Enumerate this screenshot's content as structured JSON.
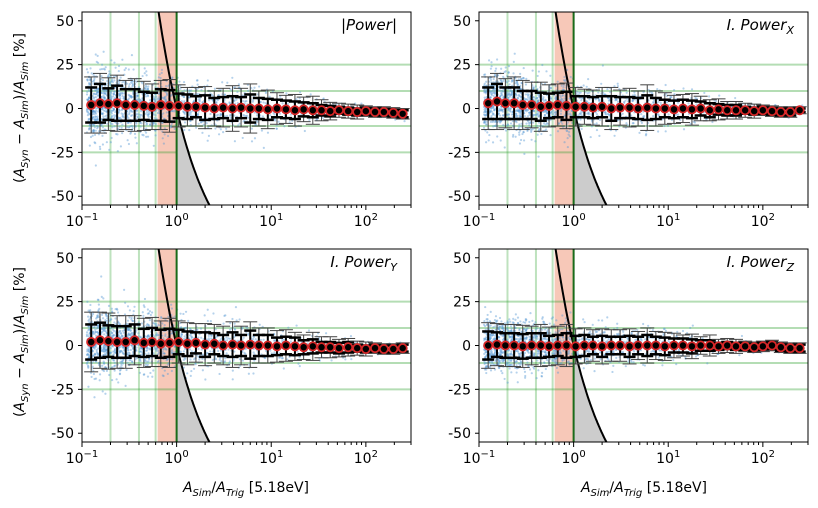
{
  "chart_data": [
    {
      "type": "scatter",
      "title": "|Power|",
      "ylabel": "(A_Syn − A_Sim)/A_Sim [%]",
      "xlabel": "",
      "xscale": "log",
      "xlim": [
        0.1,
        300
      ],
      "ylim": [
        -55,
        55
      ],
      "yticks": [
        -50,
        -25,
        0,
        25,
        50
      ],
      "xtick_labels": [
        "10^−1",
        "10^0",
        "10^1",
        "10^2"
      ],
      "series": [
        {
          "x": [
            0.125,
            0.155,
            0.19,
            0.235,
            0.29,
            0.36,
            0.45,
            0.55,
            0.68,
            0.84,
            1.05,
            1.3,
            1.6,
            2.0,
            2.5,
            3.1,
            3.9,
            4.8,
            6.0,
            7.4,
            9.2,
            11.5,
            14.3,
            17.8,
            22,
            27.5,
            34,
            42,
            52,
            65,
            81,
            100,
            125,
            155,
            195,
            245
          ],
          "y": [
            2,
            3,
            2.5,
            3,
            2,
            2,
            1.5,
            1,
            2,
            1.5,
            1.5,
            1,
            1,
            0.5,
            0,
            0.5,
            0,
            0.5,
            0,
            0,
            -0.5,
            0,
            -0.5,
            -1,
            -0.5,
            -1,
            -1,
            -1.5,
            -1,
            -1.5,
            -2,
            -1.5,
            -2,
            -2,
            -2.5,
            -3
          ],
          "yerr": [
            16,
            17,
            15,
            16,
            14,
            15,
            14,
            13,
            14,
            15,
            12,
            11,
            11,
            12,
            10,
            11,
            13,
            11,
            14,
            10,
            11,
            9,
            8,
            9,
            7,
            8,
            6,
            5,
            4,
            4,
            4,
            3,
            3,
            3,
            3,
            3
          ],
          "yerr_inner": [
            10,
            11,
            9,
            10,
            9,
            9,
            8,
            8,
            9,
            9,
            7,
            7,
            6,
            7,
            6,
            6,
            7,
            6,
            8,
            6,
            6,
            5,
            5,
            5,
            4,
            4,
            3,
            3,
            2,
            2,
            2,
            2,
            2,
            2,
            2,
            2
          ]
        }
      ]
    },
    {
      "type": "scatter",
      "title": "I.Power_X",
      "ylabel": "",
      "xlabel": "",
      "xscale": "log",
      "xlim": [
        0.1,
        300
      ],
      "ylim": [
        -55,
        55
      ],
      "yticks": [
        -50,
        -25,
        0,
        25,
        50
      ],
      "xtick_labels": [
        "10^−1",
        "10^0",
        "10^1",
        "10^2"
      ],
      "series": [
        {
          "x": [
            0.125,
            0.155,
            0.19,
            0.235,
            0.29,
            0.36,
            0.45,
            0.55,
            0.68,
            0.84,
            1.05,
            1.3,
            1.6,
            2.0,
            2.5,
            3.1,
            3.9,
            4.8,
            6.0,
            7.4,
            9.2,
            11.5,
            14.3,
            17.8,
            22,
            27.5,
            34,
            42,
            52,
            65,
            81,
            100,
            125,
            155,
            195,
            245
          ],
          "y": [
            3,
            4,
            3,
            3,
            2,
            2,
            1,
            1.5,
            2,
            1.5,
            1,
            1,
            0.5,
            1,
            0,
            0.5,
            0.5,
            0,
            0.5,
            0,
            0,
            -0.5,
            0,
            -0.5,
            0,
            -1,
            -0.5,
            -1,
            -1,
            -1,
            -1.5,
            -1,
            -1.5,
            -2,
            -2,
            -1
          ],
          "yerr": [
            15,
            16,
            14,
            15,
            14,
            13,
            14,
            12,
            12,
            13,
            11,
            10,
            10,
            11,
            12,
            10,
            11,
            10,
            13,
            10,
            9,
            8,
            8,
            9,
            7,
            6,
            6,
            5,
            5,
            4,
            4,
            3,
            3,
            3,
            3,
            2
          ],
          "yerr_inner": [
            9,
            10,
            9,
            9,
            8,
            8,
            8,
            7,
            7,
            8,
            6,
            6,
            6,
            6,
            7,
            6,
            6,
            6,
            7,
            6,
            5,
            5,
            5,
            5,
            4,
            4,
            3,
            3,
            3,
            2,
            2,
            2,
            2,
            2,
            2,
            1
          ]
        }
      ]
    },
    {
      "type": "scatter",
      "title": "I.Power_Y",
      "ylabel": "(A_Syn − A_Sim)/A_Sim [%]",
      "xlabel": "A_Sim/A_Trig [5.18eV]",
      "xscale": "log",
      "xlim": [
        0.1,
        300
      ],
      "ylim": [
        -55,
        55
      ],
      "yticks": [
        -50,
        -25,
        0,
        25,
        50
      ],
      "xtick_labels": [
        "10^−1",
        "10^0",
        "10^1",
        "10^2"
      ],
      "series": [
        {
          "x": [
            0.125,
            0.155,
            0.19,
            0.235,
            0.29,
            0.36,
            0.45,
            0.55,
            0.68,
            0.84,
            1.05,
            1.3,
            1.6,
            2.0,
            2.5,
            3.1,
            3.9,
            4.8,
            6.0,
            7.4,
            9.2,
            11.5,
            14.3,
            17.8,
            22,
            27.5,
            34,
            42,
            52,
            65,
            81,
            100,
            125,
            155,
            195,
            245
          ],
          "y": [
            2,
            3,
            2.5,
            2,
            2,
            3,
            1.5,
            2,
            1,
            1.5,
            2,
            1,
            1.5,
            0.5,
            1,
            0,
            0.5,
            0,
            0.5,
            0,
            0,
            -0.5,
            0,
            -0.5,
            -1,
            -0.5,
            -1,
            -1,
            -1.5,
            -1,
            -1.5,
            -2,
            -1.5,
            -2,
            -2,
            -1.5
          ],
          "yerr": [
            17,
            16,
            16,
            15,
            15,
            14,
            14,
            14,
            13,
            14,
            12,
            12,
            11,
            12,
            11,
            11,
            13,
            11,
            13,
            10,
            10,
            9,
            9,
            8,
            7,
            8,
            6,
            6,
            5,
            5,
            4,
            4,
            3,
            3,
            3,
            3
          ],
          "yerr_inner": [
            10,
            10,
            9,
            9,
            9,
            9,
            8,
            8,
            8,
            8,
            7,
            7,
            6,
            7,
            6,
            6,
            7,
            6,
            8,
            6,
            6,
            5,
            5,
            5,
            4,
            4,
            3,
            3,
            3,
            3,
            2,
            2,
            2,
            2,
            2,
            2
          ]
        }
      ]
    },
    {
      "type": "scatter",
      "title": "I.Power_Z",
      "ylabel": "",
      "xlabel": "A_Sim/A_Trig [5.18eV]",
      "xscale": "log",
      "xlim": [
        0.1,
        300
      ],
      "ylim": [
        -55,
        55
      ],
      "yticks": [
        -50,
        -25,
        0,
        25,
        50
      ],
      "xtick_labels": [
        "10^−1",
        "10^0",
        "10^1",
        "10^2"
      ],
      "series": [
        {
          "x": [
            0.125,
            0.155,
            0.19,
            0.235,
            0.29,
            0.36,
            0.45,
            0.55,
            0.68,
            0.84,
            1.05,
            1.3,
            1.6,
            2.0,
            2.5,
            3.1,
            3.9,
            4.8,
            6.0,
            7.4,
            9.2,
            11.5,
            14.3,
            17.8,
            22,
            27.5,
            34,
            42,
            52,
            65,
            81,
            100,
            125,
            155,
            195,
            245
          ],
          "y": [
            0,
            0.5,
            0,
            0,
            -0.5,
            0,
            0,
            -0.5,
            0,
            0,
            -0.5,
            0,
            0,
            -0.5,
            0,
            0,
            -0.5,
            0,
            0,
            0,
            -0.5,
            0,
            0,
            -0.5,
            0,
            0,
            -0.5,
            0,
            -0.5,
            -0.5,
            -1,
            -0.5,
            0,
            -1,
            -1.5,
            -1.5
          ],
          "yerr": [
            13,
            12,
            12,
            12,
            12,
            11,
            12,
            11,
            11,
            12,
            10,
            10,
            9,
            10,
            9,
            9,
            10,
            8,
            10,
            8,
            8,
            7,
            6,
            7,
            5,
            6,
            4,
            4,
            4,
            3,
            3,
            3,
            3,
            3,
            3,
            3
          ],
          "yerr_inner": [
            8,
            7,
            7,
            7,
            7,
            7,
            7,
            6,
            6,
            7,
            6,
            6,
            5,
            6,
            5,
            5,
            6,
            5,
            6,
            5,
            5,
            4,
            4,
            4,
            3,
            3,
            2,
            2,
            2,
            2,
            2,
            2,
            2,
            2,
            2,
            2
          ]
        }
      ]
    }
  ],
  "reference_lines": {
    "horizontal_y": [
      25,
      10,
      -10,
      -25
    ],
    "vertical_x_light": [
      0.2,
      0.4,
      0.6
    ],
    "vertical_x_dark": [
      1.0
    ],
    "shaded_band_x": [
      0.63,
      1.0
    ]
  },
  "colors": {
    "scatter": "#5b9bd5",
    "marker": "#d62728",
    "errorbar": "#000000",
    "guide_green": "#2ca02c",
    "band": "#f4b6a0",
    "curve_fill": "#cccccc"
  },
  "labels": {
    "ylabel_top": "(A",
    "ylabel_bottom": "(A",
    "xlabel_left": "A",
    "xlabel_right": "A"
  }
}
